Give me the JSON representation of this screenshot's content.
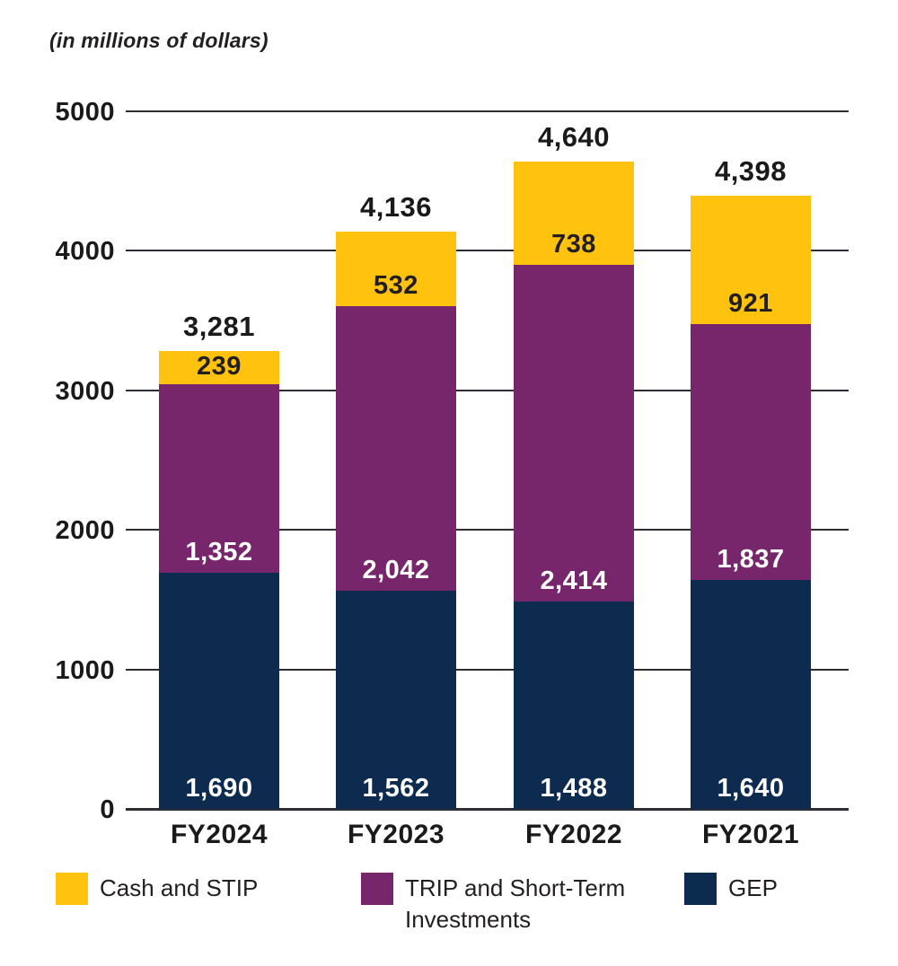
{
  "title": "(in millions of dollars)",
  "colors": {
    "gold": "#FFC20E",
    "purple": "#77266B",
    "navy": "#0C2B4E",
    "grid": "#2D2D35",
    "text_dark": "#231F20",
    "text_light": "#FFFFFF"
  },
  "chart_data": {
    "type": "bar",
    "stacked": true,
    "title": "(in millions of dollars)",
    "xlabel": "",
    "ylabel": "",
    "ylim": [
      0,
      5000
    ],
    "y_ticks": [
      0,
      1000,
      2000,
      3000,
      4000,
      5000
    ],
    "grid": true,
    "legend_position": "bottom",
    "categories": [
      "FY2024",
      "FY2023",
      "FY2022",
      "FY2021"
    ],
    "series": [
      {
        "name": "GEP",
        "color": "#0C2B4E",
        "label_color": "#FFFFFF",
        "values": [
          1690,
          1562,
          1488,
          1640
        ],
        "labels": [
          "1,690",
          "1,562",
          "1,488",
          "1,640"
        ]
      },
      {
        "name": "TRIP and Short-Term Investments",
        "color": "#77266B",
        "label_color": "#FFFFFF",
        "values": [
          1352,
          2042,
          2414,
          1837
        ],
        "labels": [
          "1,352",
          "2,042",
          "2,414",
          "1,837"
        ]
      },
      {
        "name": "Cash and STIP",
        "color": "#FFC20E",
        "label_color": "#231F20",
        "values": [
          239,
          532,
          738,
          921
        ],
        "labels": [
          "239",
          "532",
          "738",
          "921"
        ]
      }
    ],
    "totals": [
      3281,
      4136,
      4640,
      4398
    ],
    "total_labels": [
      "3,281",
      "4,136",
      "4,640",
      "4,398"
    ]
  },
  "legend": [
    {
      "label": "Cash and STIP",
      "color": "#FFC20E"
    },
    {
      "label": "TRIP and Short-Term Investments",
      "color": "#77266B"
    },
    {
      "label": "GEP",
      "color": "#0C2B4E"
    }
  ]
}
